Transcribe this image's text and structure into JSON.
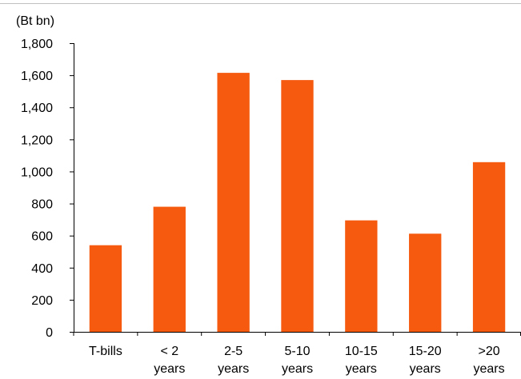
{
  "chart_data": {
    "type": "bar",
    "unit_label": "(Bt bn)",
    "categories": [
      [
        "T-bills"
      ],
      [
        "< 2",
        "years"
      ],
      [
        "2-5",
        "years"
      ],
      [
        "5-10",
        "years"
      ],
      [
        "10-15",
        "years"
      ],
      [
        "15-20",
        "years"
      ],
      [
        ">20",
        "years"
      ]
    ],
    "values": [
      540,
      780,
      1615,
      1570,
      695,
      612,
      1058
    ],
    "ylim": [
      0,
      1800
    ],
    "yticks": [
      "0",
      "200",
      "400",
      "600",
      "800",
      "1,000",
      "1,200",
      "1,400",
      "1,600",
      "1,800"
    ],
    "ytick_values": [
      0,
      200,
      400,
      600,
      800,
      1000,
      1200,
      1400,
      1600,
      1800
    ],
    "grid": false,
    "legend": "none",
    "colors": {
      "bar": "#f55a0f",
      "axis": "#000000",
      "frame": "#bfbfbf"
    }
  }
}
